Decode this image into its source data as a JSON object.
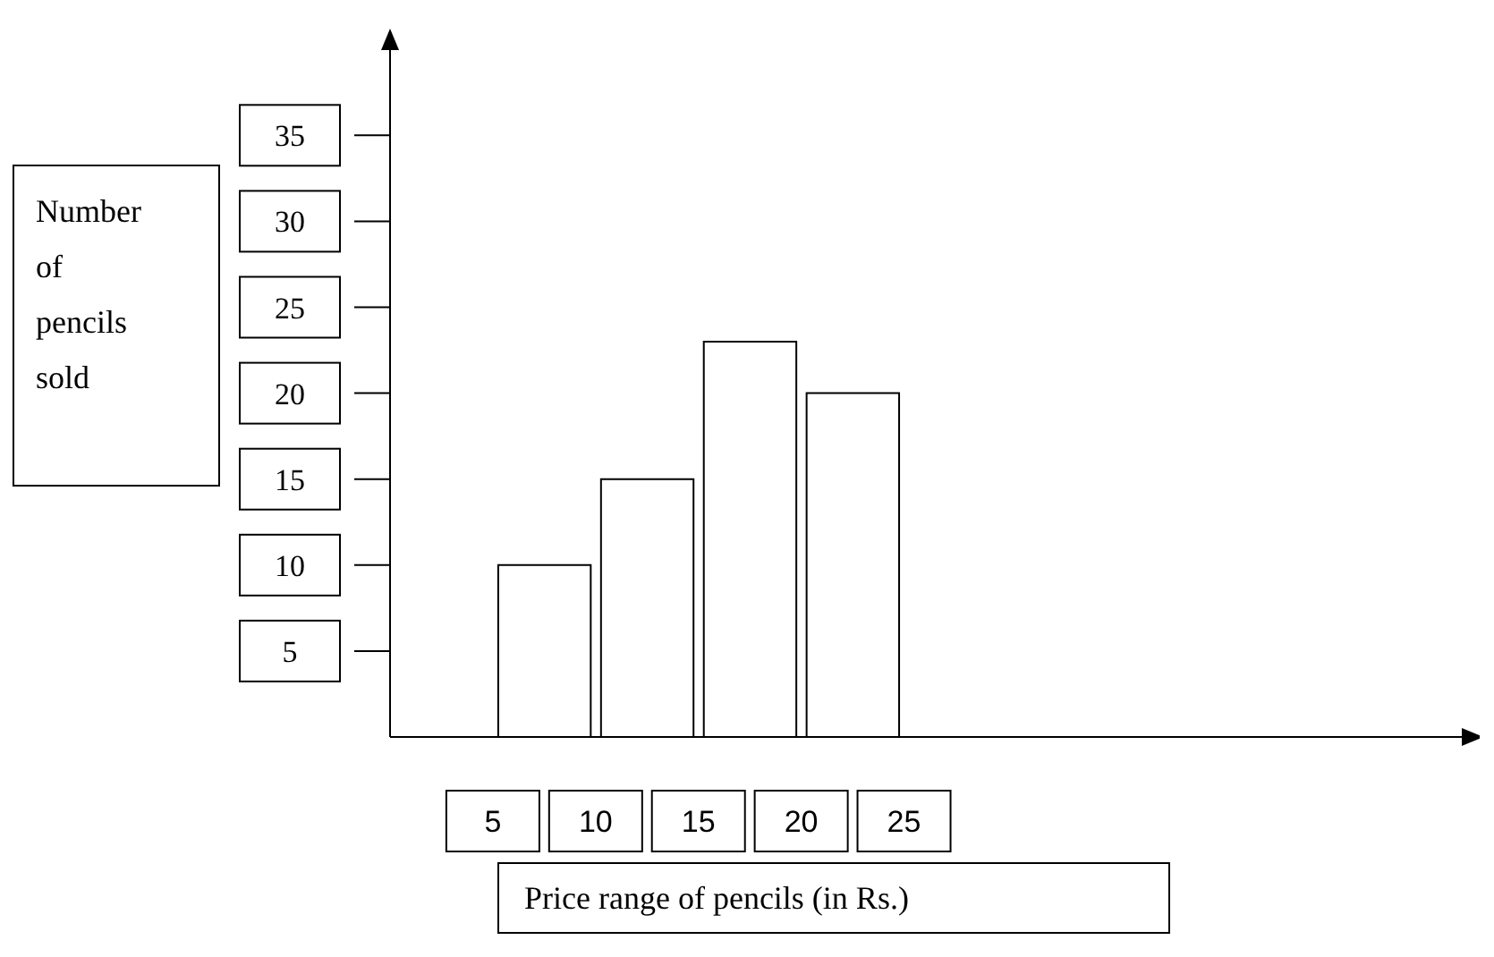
{
  "chart_data": {
    "type": "histogram",
    "xlabel": "Price range of pencils (in Rs.)",
    "ylabel": "Number of pencils sold",
    "bins": [
      5,
      10,
      15,
      20,
      25
    ],
    "values": [
      10,
      15,
      23,
      20
    ],
    "color": "#ffffff",
    "xlim": [
      0,
      53
    ],
    "xticks": [
      5,
      10,
      15,
      20,
      25
    ],
    "ylim": [
      0,
      41
    ],
    "yticks": [
      5,
      10,
      15,
      20,
      25,
      30,
      35
    ],
    "grid": false,
    "legend": false
  }
}
